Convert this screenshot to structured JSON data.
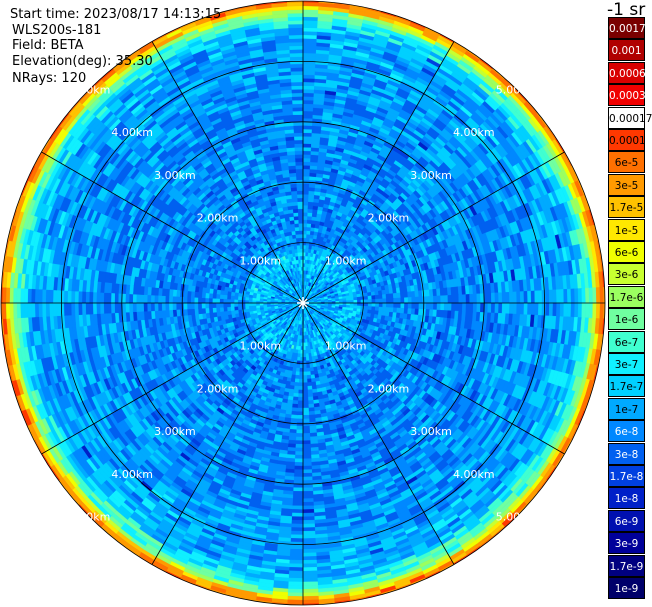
{
  "header": {
    "start_time": "Start time: 2023/08/17 14:13:15",
    "instrument": "WLS200s-181",
    "field": "Field: BETA",
    "elevation": "Elevation(deg): 35.30",
    "nrays": "NRays: 120"
  },
  "chart_data": {
    "type": "heatmap",
    "projection": "polar-ppi",
    "field": "BETA",
    "elevation_deg": 35.3,
    "nrays": 120,
    "unit_label": "-1 sr",
    "range_rings_km": [
      1,
      2,
      3,
      4,
      5
    ],
    "range_ring_labels": [
      "1.00km",
      "2.00km",
      "3.00km",
      "4.00km",
      "5.00km"
    ],
    "max_range_km": 5.0,
    "radial_lines_deg": [
      0,
      30,
      60,
      90,
      120,
      150,
      180,
      210,
      240,
      270,
      300,
      330
    ],
    "colorbar": {
      "labels": [
        "0.0017",
        "0.001",
        "0.0006",
        "0.0003",
        "0.00017",
        "0.0001",
        "6e-5",
        "3e-5",
        "1.7e-5",
        "1e-5",
        "6e-6",
        "3e-6",
        "1.7e-6",
        "1e-6",
        "6e-7",
        "3e-7",
        "1.7e-7",
        "1e-7",
        "6e-8",
        "3e-8",
        "1.7e-8",
        "1e-8",
        "6e-9",
        "3e-9",
        "1.7e-9",
        "1e-9"
      ],
      "colors": [
        "#7a0000",
        "#b00000",
        "#d80000",
        "#f00000",
        "#ffffff",
        "#ff3800",
        "#ff7000",
        "#ff9a00",
        "#ffc200",
        "#ffe800",
        "#f0ff00",
        "#c8ff30",
        "#9bff60",
        "#70ffa0",
        "#40ffd0",
        "#10f0ff",
        "#00d0ff",
        "#00aaff",
        "#0088ff",
        "#0060f0",
        "#0040e0",
        "#0020c8",
        "#0010b0",
        "#00009a",
        "#000080",
        "#00006a"
      ]
    },
    "radial_profile": [
      {
        "range_km": 0.0,
        "level": 1e-07
      },
      {
        "range_km": 0.5,
        "level": 1e-07
      },
      {
        "range_km": 0.8,
        "level": 1.7e-07
      },
      {
        "range_km": 1.0,
        "level": 6e-08
      },
      {
        "range_km": 3.0,
        "level": 6e-08
      },
      {
        "range_km": 4.5,
        "level": 1e-07
      },
      {
        "range_km": 4.8,
        "level": 1e-06
      },
      {
        "range_km": 4.92,
        "level": 3e-05
      },
      {
        "range_km": 5.0,
        "level": 6e-05
      }
    ]
  }
}
